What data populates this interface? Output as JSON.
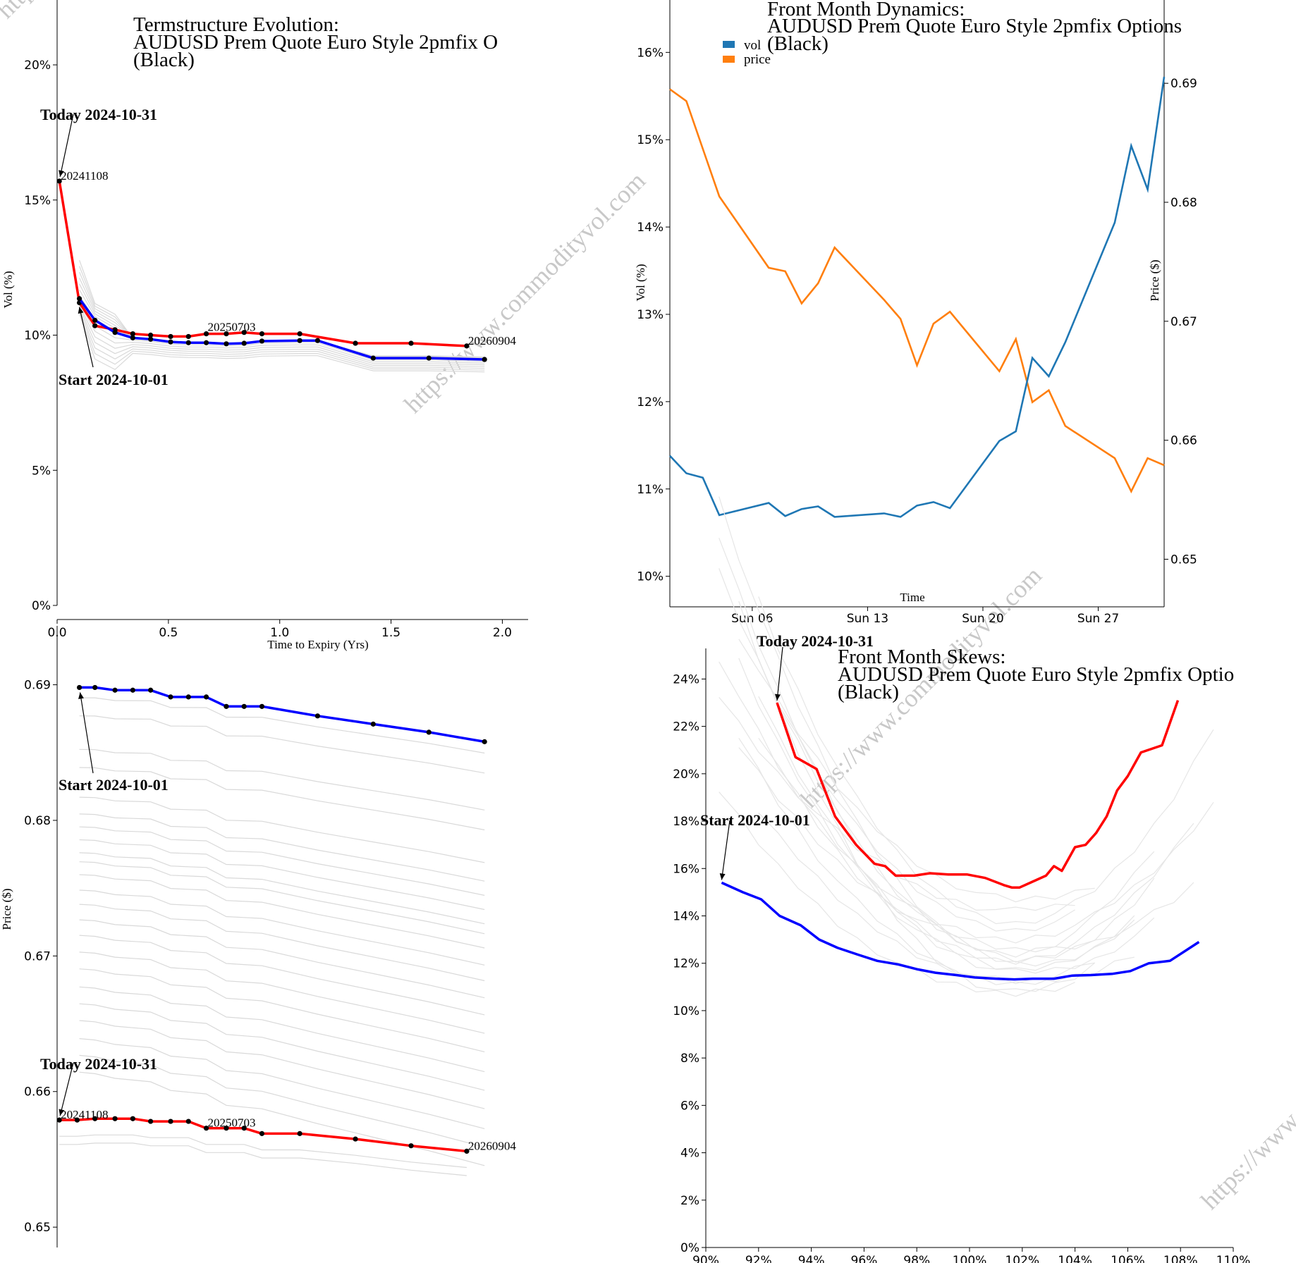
{
  "watermark": "https://www.commodityvol.com",
  "chart_data": [
    {
      "id": "termstructure",
      "type": "line",
      "title_lines": [
        "Termstructure Evolution:",
        "AUDUSD Prem Quote Euro Style 2pmfix O",
        "(Black)"
      ],
      "xlabel": "Time to Expiry (Yrs)",
      "ylabel": "Vol (%)",
      "xlim": [
        0,
        2.1
      ],
      "ylim": [
        0,
        22.4
      ],
      "xticks": [
        0.0,
        0.5,
        1.0,
        1.5,
        2.0
      ],
      "xtick_labels": [
        "0.0",
        "0.5",
        "1.0",
        "1.5",
        "2.0"
      ],
      "yticks": [
        0,
        5,
        10,
        15,
        20
      ],
      "ytick_labels": [
        "0%",
        "5%",
        "10%",
        "15%",
        "20%"
      ],
      "annotations": [
        {
          "text": "Today 2024-10-31",
          "x": 0.01,
          "y": 15.7
        },
        {
          "text": "Start 2024-10-01",
          "x": 0.1,
          "y": 11.2
        }
      ],
      "point_labels": [
        {
          "text": "20241108",
          "x": 0.01,
          "y": 15.7
        },
        {
          "text": "20250703",
          "x": 0.67,
          "y": 10.1
        },
        {
          "text": "20260904",
          "x": 1.84,
          "y": 9.6
        }
      ],
      "series": [
        {
          "name": "Today 2024-10-31",
          "color": "#ff0000",
          "x": [
            0.01,
            0.1,
            0.17,
            0.26,
            0.34,
            0.42,
            0.51,
            0.59,
            0.67,
            0.76,
            0.84,
            0.92,
            1.09,
            1.34,
            1.59,
            1.84
          ],
          "y": [
            15.7,
            11.2,
            10.35,
            10.2,
            10.05,
            10.0,
            9.95,
            9.95,
            10.05,
            10.05,
            10.1,
            10.05,
            10.05,
            9.7,
            9.7,
            9.6
          ]
        },
        {
          "name": "Start 2024-10-01",
          "color": "#0000ff",
          "x": [
            0.1,
            0.17,
            0.26,
            0.34,
            0.42,
            0.51,
            0.59,
            0.67,
            0.76,
            0.84,
            0.92,
            1.09,
            1.17,
            1.42,
            1.67,
            1.92
          ],
          "y": [
            11.35,
            10.55,
            10.1,
            9.9,
            9.85,
            9.75,
            9.72,
            9.72,
            9.68,
            9.7,
            9.78,
            9.8,
            9.8,
            9.15,
            9.15,
            9.1
          ]
        }
      ],
      "history_color": "#d9d9d9"
    },
    {
      "id": "dynamics",
      "type": "line",
      "title_lines": [
        "Front Month Dynamics:",
        "AUDUSD Prem Quote Euro Style 2pmfix Options",
        "(Black)"
      ],
      "xlabel": "Time",
      "ylabel": "Vol (%)",
      "ylabel_right": "Price ($)",
      "legend": [
        {
          "name": "vol",
          "color": "#1f77b4"
        },
        {
          "name": "price",
          "color": "#ff7f0e"
        }
      ],
      "legend_position": "top-left",
      "xlim": [
        "2024-10-01",
        "2024-10-31"
      ],
      "xticks": [
        "2024-10-06",
        "2024-10-13",
        "2024-10-20",
        "2024-10-27"
      ],
      "xtick_labels": [
        "Sun 06",
        "Sun 13",
        "Sun 20",
        "Sun 27"
      ],
      "ylim": [
        9.65,
        16.6
      ],
      "yticks": [
        10,
        11,
        12,
        13,
        14,
        15,
        16
      ],
      "ytick_labels": [
        "10%",
        "11%",
        "12%",
        "13%",
        "14%",
        "15%",
        "16%"
      ],
      "ylim_right": [
        0.646,
        0.697
      ],
      "yticks_right": [
        0.65,
        0.66,
        0.67,
        0.68,
        0.69
      ],
      "ytick_labels_right": [
        "0.65",
        "0.66",
        "0.67",
        "0.68",
        "0.69"
      ],
      "dates": [
        "2024-10-01",
        "2024-10-02",
        "2024-10-03",
        "2024-10-04",
        "2024-10-07",
        "2024-10-08",
        "2024-10-09",
        "2024-10-10",
        "2024-10-11",
        "2024-10-14",
        "2024-10-15",
        "2024-10-16",
        "2024-10-17",
        "2024-10-18",
        "2024-10-21",
        "2024-10-22",
        "2024-10-23",
        "2024-10-24",
        "2024-10-25",
        "2024-10-28",
        "2024-10-29",
        "2024-10-30",
        "2024-10-31"
      ],
      "vol": [
        11.38,
        11.18,
        11.13,
        10.7,
        10.84,
        10.69,
        10.77,
        10.8,
        10.68,
        10.72,
        10.68,
        10.81,
        10.85,
        10.78,
        11.55,
        11.66,
        12.5,
        12.29,
        12.68,
        14.05,
        14.93,
        14.43,
        15.72
      ],
      "price": [
        0.6895,
        0.6885,
        0.6845,
        0.6805,
        0.6745,
        0.6742,
        0.6715,
        0.6732,
        0.6762,
        0.6718,
        0.6702,
        0.6663,
        0.6698,
        0.6708,
        0.6658,
        0.6685,
        0.6632,
        0.6642,
        0.6612,
        0.6585,
        0.6557,
        0.6585,
        0.6579
      ]
    },
    {
      "id": "price_curve",
      "type": "line",
      "title_lines": [],
      "xlabel": "",
      "ylabel": "Price ($)",
      "xlim": [
        0,
        2.1
      ],
      "ylim": [
        0.6485,
        0.6932
      ],
      "yticks": [
        0.65,
        0.66,
        0.67,
        0.68,
        0.69
      ],
      "ytick_labels": [
        "0.65",
        "0.66",
        "0.67",
        "0.68",
        "0.69"
      ],
      "annotations": [
        {
          "text": "Start 2024-10-01",
          "x": 0.1,
          "y": 0.6898
        },
        {
          "text": "Today 2024-10-31",
          "x": 0.01,
          "y": 0.6579
        }
      ],
      "point_labels": [
        {
          "text": "20241108",
          "x": 0.01,
          "y": 0.6579
        },
        {
          "text": "20250703",
          "x": 0.67,
          "y": 0.6573
        },
        {
          "text": "20260904",
          "x": 1.84,
          "y": 0.6556
        }
      ],
      "series": [
        {
          "name": "Start 2024-10-01",
          "color": "#0000ff",
          "x": [
            0.1,
            0.17,
            0.26,
            0.34,
            0.42,
            0.51,
            0.59,
            0.67,
            0.76,
            0.84,
            0.92,
            1.17,
            1.42,
            1.67,
            1.92
          ],
          "y": [
            0.6898,
            0.6898,
            0.6896,
            0.6896,
            0.6896,
            0.6891,
            0.6891,
            0.6891,
            0.6884,
            0.6884,
            0.6884,
            0.6877,
            0.6871,
            0.6865,
            0.6858
          ]
        },
        {
          "name": "Today 2024-10-31",
          "color": "#ff0000",
          "x": [
            0.01,
            0.09,
            0.17,
            0.26,
            0.34,
            0.42,
            0.51,
            0.59,
            0.67,
            0.76,
            0.84,
            0.92,
            1.09,
            1.34,
            1.59,
            1.84
          ],
          "y": [
            0.6579,
            0.6579,
            0.658,
            0.658,
            0.658,
            0.6578,
            0.6578,
            0.6578,
            0.6573,
            0.6573,
            0.6573,
            0.6569,
            0.6569,
            0.6565,
            0.656,
            0.6556
          ]
        }
      ],
      "history_color": "#d9d9d9"
    },
    {
      "id": "skews",
      "type": "line",
      "title_lines": [
        "Front Month Skews:",
        "AUDUSD Prem Quote Euro Style 2pmfix Optio",
        "(Black)"
      ],
      "xlabel": "",
      "ylabel": "",
      "xlim": [
        90,
        110
      ],
      "xticks": [
        90,
        92,
        94,
        96,
        98,
        100,
        102,
        104,
        106,
        108,
        110
      ],
      "xtick_labels": [
        "90%",
        "92%",
        "94%",
        "96%",
        "98%",
        "100%",
        "102%",
        "104%",
        "106%",
        "108%",
        "110%"
      ],
      "ylim": [
        0,
        25.5
      ],
      "yticks": [
        0,
        2,
        4,
        6,
        8,
        10,
        12,
        14,
        16,
        18,
        20,
        22,
        24
      ],
      "ytick_labels": [
        "0%",
        "2%",
        "4%",
        "6%",
        "8%",
        "10%",
        "12%",
        "14%",
        "16%",
        "18%",
        "20%",
        "22%",
        "24%"
      ],
      "annotations": [
        {
          "text": "Today 2024-10-31",
          "x": 92.7,
          "y": 23.0
        },
        {
          "text": "Start 2024-10-01",
          "x": 90.6,
          "y": 15.4
        }
      ],
      "series": [
        {
          "name": "Today 2024-10-31",
          "color": "#ff0000",
          "x": [
            92.7,
            93.4,
            94.2,
            94.9,
            95.7,
            96.4,
            96.8,
            97.2,
            97.9,
            98.5,
            99.2,
            99.9,
            100.6,
            101.3,
            101.6,
            101.9,
            102.5,
            102.9,
            103.2,
            103.5,
            104.0,
            104.4,
            104.8,
            105.2,
            105.6,
            106.0,
            106.5,
            107.3,
            107.9
          ],
          "y": [
            23.0,
            20.7,
            20.2,
            18.2,
            17.0,
            16.2,
            16.1,
            15.7,
            15.7,
            15.8,
            15.75,
            15.75,
            15.6,
            15.3,
            15.2,
            15.2,
            15.5,
            15.7,
            16.1,
            15.9,
            16.9,
            17.0,
            17.5,
            18.2,
            19.3,
            19.9,
            20.9,
            21.2,
            23.1
          ]
        },
        {
          "name": "Start 2024-10-01",
          "color": "#0000ff",
          "x": [
            90.6,
            91.4,
            92.1,
            92.8,
            93.6,
            94.3,
            95.0,
            95.8,
            96.5,
            97.3,
            98.0,
            98.7,
            99.5,
            100.2,
            101.0,
            101.7,
            102.4,
            103.2,
            103.9,
            104.6,
            105.4,
            106.1,
            106.8,
            107.6,
            108.7
          ],
          "y": [
            15.4,
            15.0,
            14.7,
            14.0,
            13.6,
            13.0,
            12.65,
            12.35,
            12.1,
            11.95,
            11.75,
            11.6,
            11.5,
            11.4,
            11.35,
            11.32,
            11.35,
            11.35,
            11.48,
            11.5,
            11.55,
            11.67,
            12.0,
            12.1,
            12.9
          ]
        }
      ],
      "history_color": "#e6e6e6"
    }
  ]
}
